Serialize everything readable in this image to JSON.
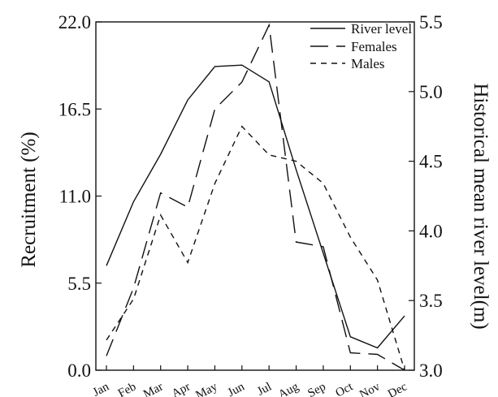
{
  "chart_data": {
    "type": "line",
    "categories": [
      "Jan",
      "Feb",
      "Mar",
      "Apr",
      "May",
      "Jun",
      "Jul",
      "Aug",
      "Sep",
      "Oct",
      "Nov",
      "Dec"
    ],
    "left_axis": {
      "label": "Recruitment (%)",
      "ticks": [
        "0.0",
        "5.5",
        "11.0",
        "16.5",
        "22.0"
      ],
      "tick_values": [
        0,
        5.5,
        11.0,
        16.5,
        22.0
      ],
      "ylim": [
        0,
        22
      ]
    },
    "right_axis": {
      "label": "Historical mean river level(m)",
      "ticks": [
        "3.0",
        "3.5",
        "4.0",
        "4.5",
        "5.0",
        "5.5"
      ],
      "tick_values": [
        3.0,
        3.5,
        4.0,
        4.5,
        5.0,
        5.5
      ],
      "ylim": [
        3.0,
        5.5
      ]
    },
    "series": [
      {
        "name": "River level",
        "axis": "right",
        "dash": "",
        "values": [
          3.75,
          4.21,
          4.55,
          4.94,
          5.18,
          5.19,
          5.07,
          4.44,
          3.84,
          3.24,
          3.16,
          3.39
        ]
      },
      {
        "name": "Females",
        "axis": "left",
        "dash": "22,10",
        "values": [
          0.9,
          5.2,
          11.2,
          10.3,
          16.5,
          18.2,
          21.8,
          8.1,
          7.8,
          1.1,
          1.0,
          0.0
        ]
      },
      {
        "name": "Males",
        "axis": "left",
        "dash": "7,6",
        "values": [
          1.9,
          4.5,
          9.8,
          6.8,
          11.8,
          15.4,
          13.6,
          13.2,
          11.8,
          8.4,
          5.7,
          0.0
        ]
      }
    ],
    "legend_position": "top-right",
    "grid": false
  }
}
